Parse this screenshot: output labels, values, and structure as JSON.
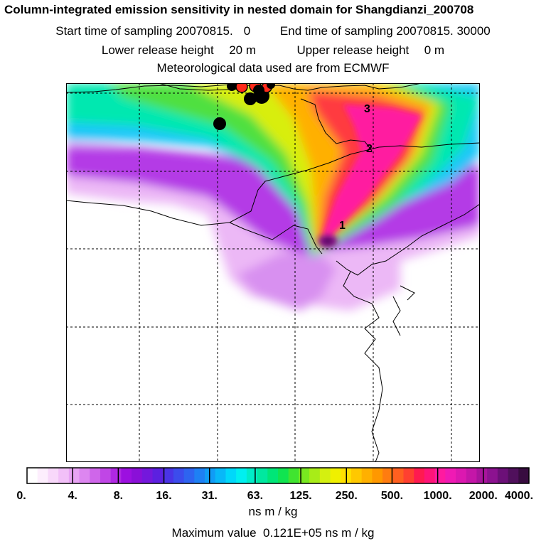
{
  "header": {
    "title": "Column-integrated emission sensitivity in nested domain for Shangdianzi_200708",
    "start_label": "Start time of sampling 20070815.",
    "start_hour": "0",
    "end_label": "End time of sampling 20070815. 30000",
    "lower_label": "Lower release height",
    "lower_value": "20 m",
    "upper_label": "Upper release height",
    "upper_value": "0 m",
    "met_label": "Meteorological data used are from ECMWF"
  },
  "map": {
    "day_labels": [
      "1",
      "2",
      "3"
    ]
  },
  "colorbar": {
    "tick_labels": [
      "0.",
      "4.",
      "8.",
      "16.",
      "31.",
      "63.",
      "125.",
      "250.",
      "500.",
      "1000.",
      "2000.",
      "4000."
    ],
    "colors": [
      "#ffffff",
      "#fdeefd",
      "#f8d8fa",
      "#f2c0f8",
      "#e8a4f4",
      "#dd86f0",
      "#cf66ea",
      "#c046e6",
      "#b028e3",
      "#9c10e0",
      "#8a10d8",
      "#7418dc",
      "#5c20e0",
      "#4a34e6",
      "#3c4cec",
      "#2e64f0",
      "#1e80f4",
      "#109cf6",
      "#08b8f8",
      "#00d8fa",
      "#00f0f0",
      "#00ecc8",
      "#00e8a0",
      "#00e678",
      "#10e450",
      "#40e430",
      "#78e820",
      "#a8ec18",
      "#d4f010",
      "#f0f000",
      "#ffe000",
      "#ffc800",
      "#ffb000",
      "#ff9800",
      "#ff7c10",
      "#ff6020",
      "#ff4030",
      "#ff1a50",
      "#ff1478",
      "#ff1aa0",
      "#f01ab4",
      "#dc18b0",
      "#c416a8",
      "#a8149c",
      "#8c1290",
      "#6c1078",
      "#50105c",
      "#380c40"
    ],
    "units": "ns m / kg",
    "max_label": "Maximum value",
    "max_value": "0.121E+05 ns m / kg"
  }
}
